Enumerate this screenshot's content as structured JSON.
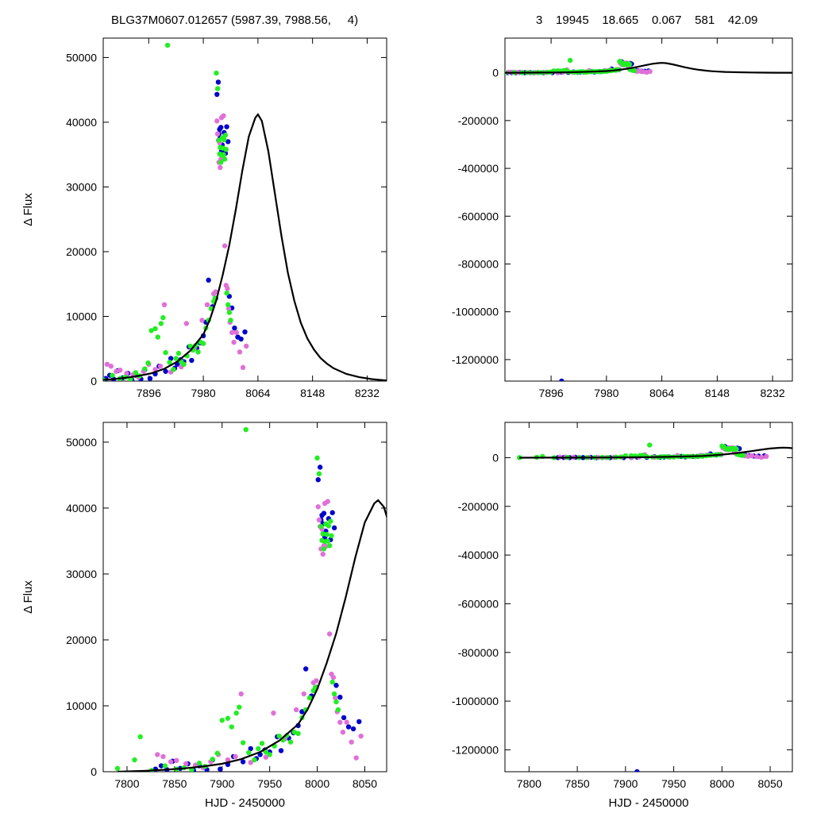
{
  "header": {
    "left_title": "BLG37M0607.012657 (5987.39, 7988.56,     4)",
    "right_title": "3    19945    18.665    0.067    581    42.09"
  },
  "colors": {
    "series_blue": "#0000cc",
    "series_magenta": "#e070d8",
    "series_green": "#22ee22",
    "model": "#000000"
  },
  "chart_data": [
    {
      "type": "scatter",
      "panel": "top-left",
      "title": "",
      "xlabel": "",
      "ylabel": "Δ Flux",
      "xlim": [
        7826,
        8262
      ],
      "ylim": [
        0,
        53000
      ],
      "xticks": [
        7896,
        7980,
        8064,
        8148,
        8232
      ],
      "xtick_labels": [
        "7896",
        "7980",
        "8064",
        "8148",
        "8232"
      ],
      "yticks": [
        0,
        10000,
        20000,
        30000,
        40000,
        50000
      ],
      "ytick_labels": [
        "0",
        "10000",
        "20000",
        "30000",
        "40000",
        "50000"
      ],
      "legend": "none",
      "grid": false
    },
    {
      "type": "scatter",
      "panel": "top-right",
      "title": "",
      "xlabel": "",
      "ylabel": "",
      "xlim": [
        7826,
        8262
      ],
      "ylim": [
        -1290000,
        145000
      ],
      "xticks": [
        7896,
        7980,
        8064,
        8148,
        8232
      ],
      "xtick_labels": [
        "7896",
        "7980",
        "8064",
        "8148",
        "8232"
      ],
      "yticks": [
        -1200000,
        -1000000,
        -800000,
        -600000,
        -400000,
        -200000,
        0
      ],
      "ytick_labels": [
        "-1200000",
        "-1000000",
        "-800000",
        "-600000",
        "-400000",
        "-200000",
        "0"
      ],
      "legend": "none",
      "grid": false
    },
    {
      "type": "scatter",
      "panel": "bottom-left",
      "title": "",
      "xlabel": "HJD - 2450000",
      "ylabel": "Δ Flux",
      "xlim": [
        7775,
        8073
      ],
      "ylim": [
        0,
        53000
      ],
      "xticks": [
        7800,
        7850,
        7900,
        7950,
        8000,
        8050
      ],
      "xtick_labels": [
        "7800",
        "7850",
        "7900",
        "7950",
        "8000",
        "8050"
      ],
      "yticks": [
        0,
        10000,
        20000,
        30000,
        40000,
        50000
      ],
      "ytick_labels": [
        "0",
        "10000",
        "20000",
        "30000",
        "40000",
        "50000"
      ],
      "legend": "none",
      "grid": false
    },
    {
      "type": "scatter",
      "panel": "bottom-right",
      "title": "",
      "xlabel": "HJD - 2450000",
      "ylabel": "",
      "xlim": [
        7775,
        8073
      ],
      "ylim": [
        -1290000,
        145000
      ],
      "xticks": [
        7800,
        7850,
        7900,
        7950,
        8000,
        8050
      ],
      "xtick_labels": [
        "7800",
        "7850",
        "7900",
        "7950",
        "8000",
        "8050"
      ],
      "yticks": [
        -1200000,
        -1000000,
        -800000,
        -600000,
        -400000,
        -200000,
        0
      ],
      "ytick_labels": [
        "-1200000",
        "-1000000",
        "-800000",
        "-600000",
        "-400000",
        "-200000",
        "0"
      ],
      "legend": "none",
      "grid": false
    }
  ],
  "series": {
    "model_curve": {
      "name": "",
      "x": [
        7790,
        7820,
        7840,
        7860,
        7880,
        7900,
        7920,
        7940,
        7960,
        7980,
        7990,
        8000,
        8010,
        8020,
        8030,
        8040,
        8050,
        8060,
        8064,
        8070,
        8080,
        8090,
        8100,
        8110,
        8120,
        8130,
        8140,
        8150,
        8160,
        8170,
        8180,
        8200,
        8220,
        8240,
        8262
      ],
      "y": [
        0,
        150,
        300,
        500,
        800,
        1200,
        1900,
        3000,
        4700,
        7200,
        9500,
        12500,
        16500,
        21000,
        26500,
        32500,
        37800,
        40700,
        41200,
        40200,
        35500,
        29000,
        22500,
        16800,
        12400,
        9000,
        6600,
        4900,
        3600,
        2700,
        2000,
        1100,
        600,
        300,
        100
      ]
    },
    "blue": {
      "name": "",
      "x": [
        7830,
        7836,
        7842,
        7848,
        7856,
        7864,
        7870,
        7876,
        7884,
        7890,
        7898,
        7906,
        7912,
        7922,
        7930,
        7936,
        7940,
        7945,
        7950,
        7958,
        7962,
        7970,
        7975,
        7980,
        7984,
        7988,
        7994,
        7999,
        8001,
        8003,
        8004,
        8005,
        8006,
        8007,
        8008,
        8009,
        8010,
        8012,
        8014,
        8016,
        8018,
        8020,
        8024,
        8028,
        8033,
        8038,
        8044,
        7912
      ],
      "y": [
        400,
        900,
        300,
        1600,
        500,
        1200,
        200,
        900,
        300,
        1800,
        400,
        1100,
        2300,
        1500,
        3500,
        2000,
        2600,
        3300,
        3000,
        5300,
        3200,
        5100,
        5900,
        7000,
        9100,
        15600,
        11500,
        12800,
        44300,
        46200,
        38200,
        38900,
        37600,
        39200,
        35600,
        36500,
        36000,
        38400,
        35200,
        39300,
        37000,
        13100,
        11300,
        8200,
        6800,
        6500,
        7600,
        -1290000
      ]
    },
    "magenta": {
      "name": "",
      "x": [
        7832,
        7838,
        7846,
        7852,
        7862,
        7872,
        7880,
        7888,
        7896,
        7906,
        7914,
        7920,
        7930,
        7946,
        7954,
        7966,
        7978,
        7986,
        7996,
        7999,
        8001,
        8002,
        8003,
        8004,
        8005,
        8006,
        8007,
        8008,
        8009,
        8011,
        8013,
        8015,
        8017,
        8019,
        8021,
        8024,
        8027,
        8031,
        8036,
        8041,
        8046
      ],
      "y": [
        2600,
        2300,
        1500,
        1700,
        1200,
        1000,
        600,
        1500,
        2600,
        1800,
        2300,
        11800,
        1400,
        2200,
        8900,
        5000,
        9400,
        11800,
        13500,
        13800,
        40200,
        38200,
        37200,
        33800,
        36800,
        33000,
        34300,
        40700,
        34200,
        41000,
        20900,
        14800,
        14300,
        11200,
        9100,
        7500,
        6000,
        7500,
        4500,
        2100,
        5400
      ]
    },
    "green": {
      "name": "",
      "x": [
        7790,
        7808,
        7814,
        7826,
        7840,
        7852,
        7860,
        7868,
        7876,
        7882,
        7890,
        7895,
        7900,
        7906,
        7910,
        7915,
        7918,
        7922,
        7925,
        7928,
        7934,
        7938,
        7942,
        7946,
        7950,
        7955,
        7960,
        7964,
        7968,
        7972,
        7976,
        7980,
        7984,
        7988,
        7992,
        7996,
        7998,
        8000,
        8002,
        8004,
        8005,
        8006,
        8007,
        8008,
        8009,
        8010,
        8011,
        8012,
        8013,
        8014,
        8015,
        8016,
        8018,
        8020,
        8022
      ],
      "y": [
        500,
        1800,
        5300,
        200,
        900,
        400,
        600,
        300,
        1300,
        800,
        1900,
        2800,
        7800,
        8100,
        6800,
        8900,
        9800,
        4400,
        51900,
        2900,
        1800,
        3500,
        4300,
        3000,
        2600,
        3900,
        5400,
        4800,
        5500,
        4500,
        6000,
        5800,
        8200,
        9400,
        11200,
        12300,
        12800,
        47600,
        45200,
        37200,
        35100,
        36100,
        33800,
        34900,
        37600,
        36000,
        35000,
        37300,
        34300,
        38000,
        35800,
        13600,
        11800,
        10600,
        9400
      ]
    }
  }
}
